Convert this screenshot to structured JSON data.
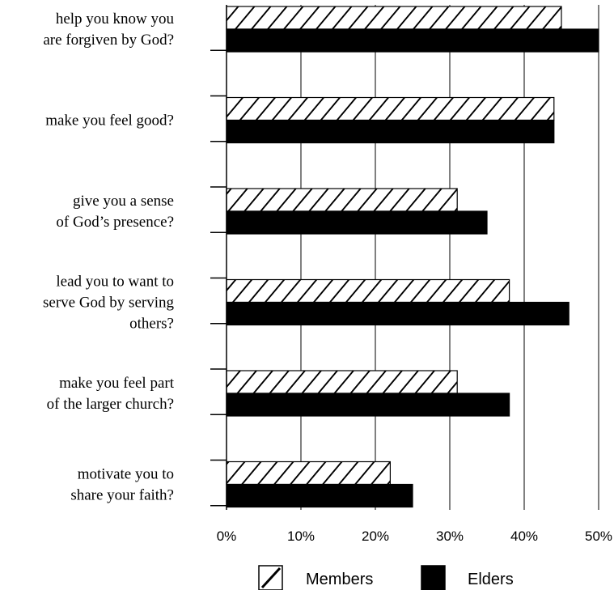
{
  "chart_data": {
    "type": "bar",
    "orientation": "horizontal",
    "categories": [
      [
        "help you know you",
        "are forgiven by God?"
      ],
      [
        "make you feel good?"
      ],
      [
        "give you a sense",
        "of God’s presence?"
      ],
      [
        "lead you to want to",
        "serve God by serving",
        "others?"
      ],
      [
        "make you feel part",
        "of the larger church?"
      ],
      [
        "motivate you to",
        "share your faith?"
      ]
    ],
    "series": [
      {
        "name": "Members",
        "values": [
          45,
          44,
          31,
          38,
          31,
          22
        ],
        "fill": "hatched"
      },
      {
        "name": "Elders",
        "values": [
          50,
          44,
          35,
          46,
          38,
          25
        ],
        "fill": "solid"
      }
    ],
    "xlim": [
      0,
      50
    ],
    "xticks": [
      0,
      10,
      20,
      30,
      40,
      50
    ],
    "xtick_labels": [
      "0%",
      "10%",
      "20%",
      "30%",
      "40%",
      "50%"
    ],
    "grid": "vertical",
    "legend_placement": "bottom",
    "colors": {
      "bar": "#000000",
      "background": "#ffffff",
      "grid": "#000000"
    }
  }
}
